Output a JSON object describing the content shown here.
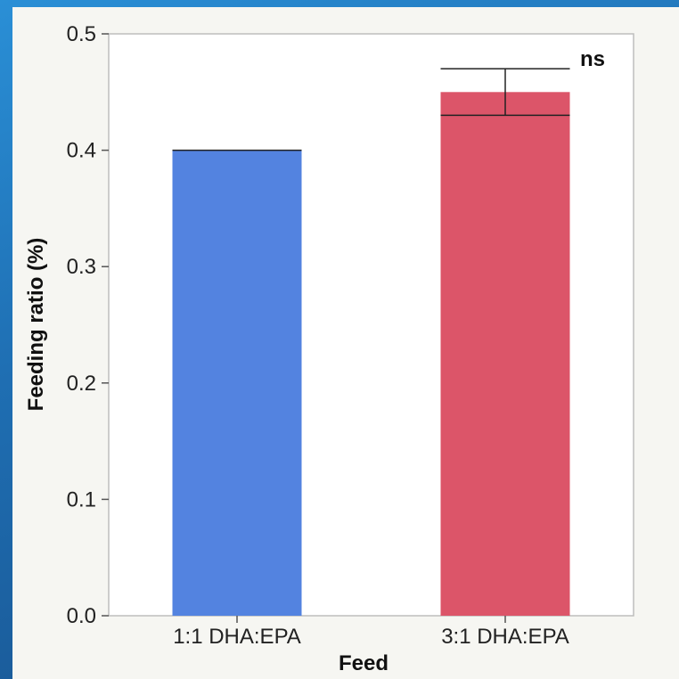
{
  "chart_data": {
    "type": "bar",
    "categories": [
      "1:1 DHA:EPA",
      "3:1 DHA:EPA"
    ],
    "values": [
      0.4,
      0.45
    ],
    "errors": [
      0.0,
      0.02
    ],
    "colors": [
      "#5383e0",
      "#dc5569"
    ],
    "xlabel": "Feed",
    "ylabel": "Feeding ratio (%)",
    "ylim": [
      0,
      0.5
    ],
    "yticks": [
      "0.0",
      "0.1",
      "0.2",
      "0.3",
      "0.4",
      "0.5"
    ],
    "annotation": "ns",
    "grid": false,
    "legend": "none"
  }
}
